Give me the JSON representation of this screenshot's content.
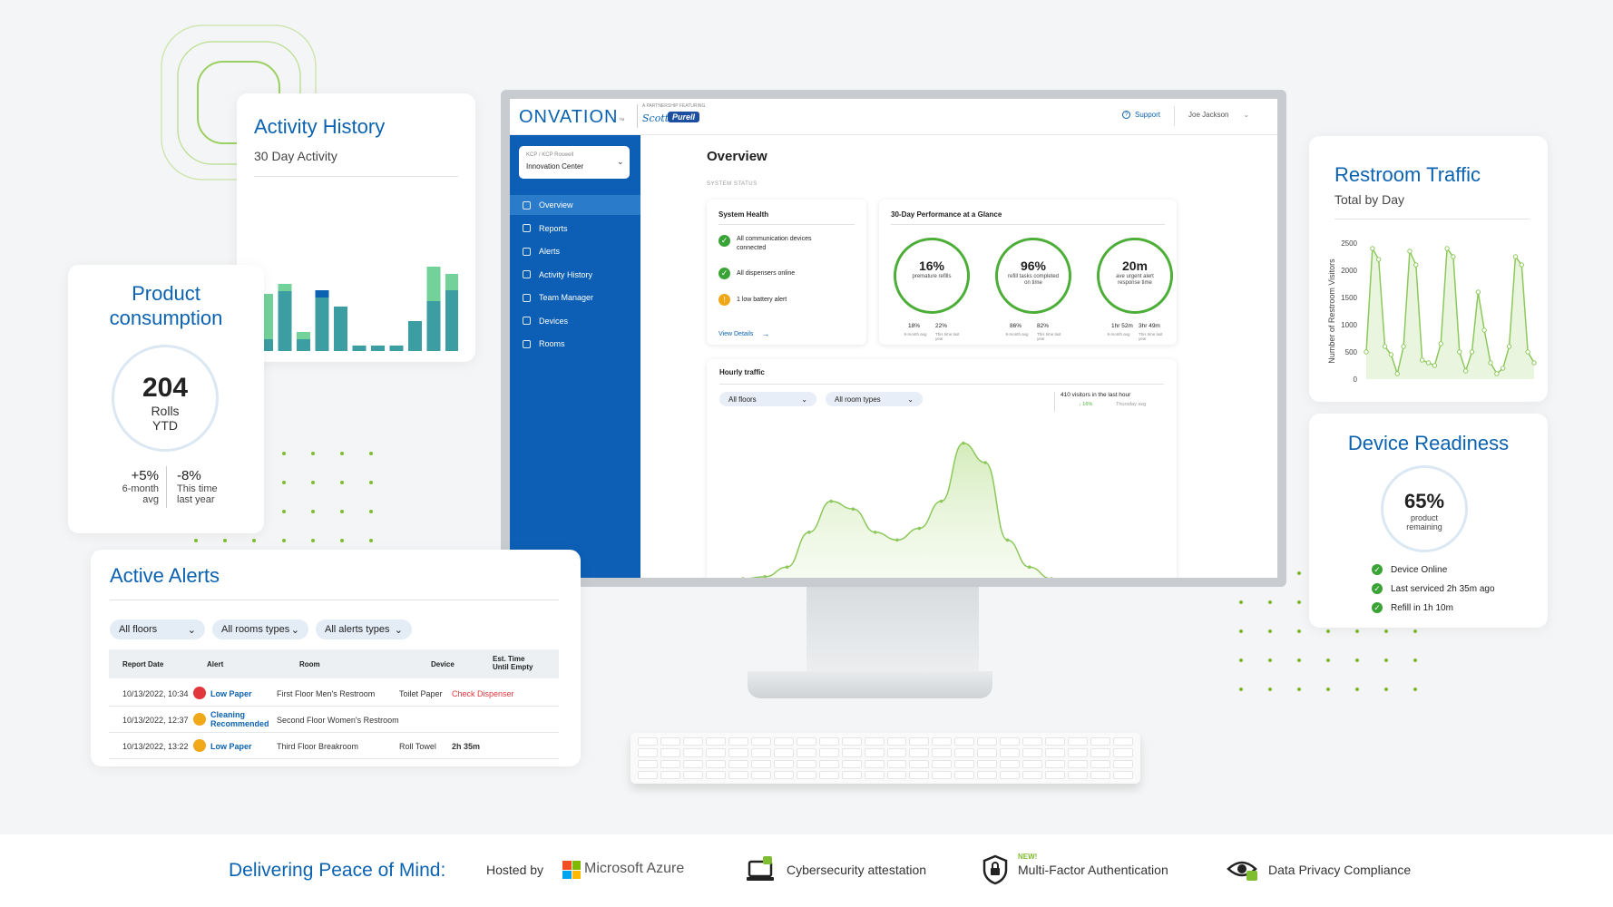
{
  "activity_history": {
    "title": "Activity History",
    "subtitle": "30 Day Activity",
    "chart_data": {
      "type": "bar",
      "series": [
        {
          "name": "",
          "values": [
            13,
            66,
            13,
            59,
            49,
            6,
            6,
            6,
            33,
            55,
            67
          ]
        },
        {
          "name": "",
          "values": [
            50,
            8,
            8,
            0,
            0,
            0,
            0,
            0,
            0,
            38,
            18
          ]
        },
        {
          "name": "",
          "values": [
            0,
            0,
            0,
            8,
            0,
            0,
            0,
            0,
            0,
            0,
            0
          ]
        }
      ],
      "colors": [
        "#3c9ea3",
        "#72d29a",
        "#0b62b0"
      ]
    }
  },
  "product_consumption": {
    "title_line1": "Product",
    "title_line2": "consumption",
    "value": "204",
    "unit_line1": "Rolls",
    "unit_line2": "YTD",
    "stat1_value": "+5%",
    "stat1_label_line1": "6-month",
    "stat1_label_line2": "avg",
    "stat2_value": "-8%",
    "stat2_label_line1": "This time",
    "stat2_label_line2": "last year"
  },
  "active_alerts": {
    "title": "Active Alerts",
    "filters": [
      "All floors",
      "All rooms types",
      "All alerts types"
    ],
    "columns": [
      "Report Date",
      "Alert",
      "Room",
      "Device",
      "Est. Time",
      "Until Empty"
    ],
    "rows": [
      {
        "date": "10/13/2022, 10:34",
        "alert": "Low Paper",
        "alert_line2": "",
        "room": "First Floor Men's Restroom",
        "device": "Toilet Paper",
        "time": "Check Dispenser",
        "icon": "paper-red-icon"
      },
      {
        "date": "10/13/2022, 12:37",
        "alert": "Cleaning",
        "alert_line2": "Recommended",
        "room": "Second Floor Women's Restroom",
        "device": "",
        "time": "",
        "icon": "cleaning-yellow-icon"
      },
      {
        "date": "10/13/2022, 13:22",
        "alert": "Low Paper",
        "alert_line2": "",
        "room": "Third Floor Breakroom",
        "device": "Roll Towel",
        "time": "2h 35m",
        "icon": "paper-yellow-icon"
      }
    ],
    "colors": {
      "danger": "#e0363c",
      "warning": "#f0a819"
    }
  },
  "restroom_traffic": {
    "title": "Restroom Traffic",
    "subtitle": "Total by Day",
    "chart_data": {
      "type": "line",
      "ylabel": "Number of Restroom Visitors",
      "ylim": [
        0,
        2500
      ],
      "yticks": [
        "2500",
        "2000",
        "1500",
        "1000",
        "500",
        "0"
      ],
      "values": [
        500,
        2400,
        2200,
        600,
        450,
        100,
        600,
        2350,
        2100,
        350,
        300,
        250,
        650,
        2400,
        2250,
        500,
        150,
        500,
        1600,
        900,
        300,
        100,
        200,
        600,
        2250,
        2100,
        500,
        300
      ]
    }
  },
  "device_readiness": {
    "title": "Device Readiness",
    "value": "65%",
    "label_line1": "product",
    "label_line2": "remaining",
    "items": [
      "Device Online",
      "Last serviced 2h 35m ago",
      "Refill in 1h 10m"
    ]
  },
  "app": {
    "logo": "ONVATION",
    "logo_tm": "™",
    "partnership": "A PARTNERSHIP FEATURING",
    "brand1": "Scott",
    "brand2": "Purell",
    "support": "Support",
    "user": "Joe Jackson",
    "location_path": "KCP / KCP Roswell",
    "location": "Innovation Center",
    "nav": [
      "Overview",
      "Reports",
      "Alerts",
      "Activity History",
      "Team Manager",
      "Devices",
      "Rooms"
    ],
    "page_title": "Overview",
    "section_label": "SYSTEM STATUS",
    "system_health": {
      "title": "System Health",
      "items": [
        "All communication devices connected",
        "All dispensers online",
        "1 low battery alert"
      ],
      "link": "View Details"
    },
    "performance": {
      "title": "30-Day Performance at a Glance",
      "metrics": [
        {
          "value": "16%",
          "label": "premature refills",
          "a": "18%",
          "a_label": "6-month avg",
          "b": "22%",
          "b_label": "This time last year"
        },
        {
          "value": "96%",
          "label": "refill tasks completed on time",
          "a": "86%",
          "a_label": "6-month avg",
          "b": "82%",
          "b_label": "This time last year"
        },
        {
          "value": "20m",
          "label": "ave urgent alert response time",
          "a": "1hr 52m",
          "a_label": "6-month avg",
          "b": "3hr 49m",
          "b_label": "This time last year"
        }
      ]
    },
    "hourly": {
      "title": "Hourly traffic",
      "filter1": "All floors",
      "filter2": "All room types",
      "visitors": "410 visitors in the last hour",
      "change": "↓ 16%",
      "change_label": "Thursday avg",
      "chart_data": {
        "type": "area",
        "values": [
          0,
          1,
          6,
          24,
          40,
          36,
          24,
          20,
          26,
          40,
          70,
          60,
          20,
          6,
          0
        ]
      }
    }
  },
  "footer": {
    "tagline": "Delivering Peace of Mind:",
    "hosted_by": "Hosted by",
    "azure": "Microsoft Azure",
    "cyber": "Cybersecurity attestation",
    "new_badge": "NEW!",
    "mfa": "Multi-Factor Authentication",
    "privacy": "Data Privacy Compliance"
  }
}
